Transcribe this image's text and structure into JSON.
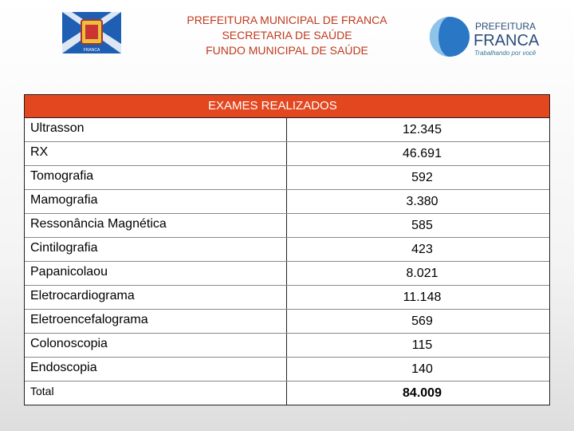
{
  "header": {
    "lines": [
      "PREFEITURA MUNICIPAL DE FRANCA",
      "SECRETARIA DE SAÚDE",
      "FUNDO MUNICIPAL DE SAÚDE"
    ]
  },
  "logo_left": {
    "label": "FRANCA"
  },
  "logo_right": {
    "top": "PREFEITURA",
    "name": "FRANCA",
    "slogan": "Trabalhando por você"
  },
  "table": {
    "title": "EXAMES REALIZADOS",
    "rows": [
      [
        "Ultrasson",
        "12.345"
      ],
      [
        "RX",
        "46.691"
      ],
      [
        "Tomografia",
        "592"
      ],
      [
        "Mamografia",
        "3.380"
      ],
      [
        "Ressonância Magnética",
        "585"
      ],
      [
        "Cintilografia",
        "423"
      ],
      [
        "Papanicolaou",
        "8.021"
      ],
      [
        "Eletrocardiograma",
        "11.148"
      ],
      [
        "Eletroencefalograma",
        "569"
      ],
      [
        "Colonoscopia",
        "115"
      ],
      [
        "Endoscopia",
        "140"
      ]
    ],
    "total": [
      "Total",
      "84.009"
    ]
  }
}
